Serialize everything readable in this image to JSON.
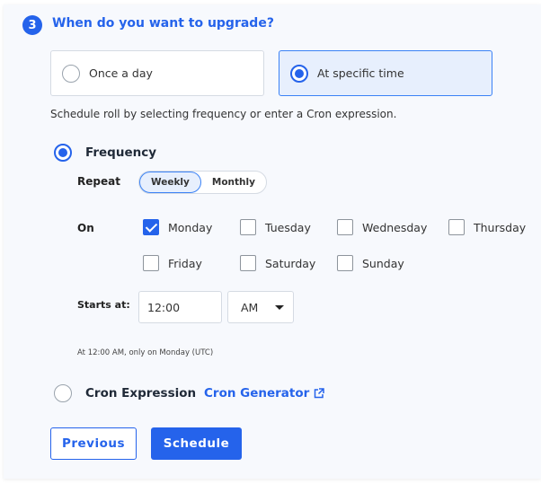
{
  "step": {
    "number": "3",
    "title": "When do you want to upgrade?"
  },
  "options": [
    {
      "label": "Once a day",
      "selected": false
    },
    {
      "label": "At specific time",
      "selected": true
    }
  ],
  "description": "Schedule roll by selecting frequency or enter a Cron expression.",
  "frequency": {
    "label": "Frequency",
    "selected": true,
    "repeat_label": "Repeat",
    "repeat_options": [
      "Weekly",
      "Monthly"
    ],
    "repeat_selected": "Weekly",
    "on_label": "On",
    "days": [
      {
        "label": "Monday",
        "checked": true
      },
      {
        "label": "Tuesday",
        "checked": false
      },
      {
        "label": "Wednesday",
        "checked": false
      },
      {
        "label": "Thursday",
        "checked": false
      },
      {
        "label": "Friday",
        "checked": false
      },
      {
        "label": "Saturday",
        "checked": false
      },
      {
        "label": "Sunday",
        "checked": false
      }
    ],
    "starts_label": "Starts at:",
    "time_value": "12:00",
    "ampm_value": "AM",
    "summary": "At 12:00 AM, only on Monday (UTC)"
  },
  "cron": {
    "label": "Cron Expression",
    "selected": false,
    "generator_link": "Cron Generator"
  },
  "buttons": {
    "previous": "Previous",
    "schedule": "Schedule"
  },
  "colors": {
    "accent": "#2563eb",
    "panel_bg": "#f7f9fd"
  }
}
